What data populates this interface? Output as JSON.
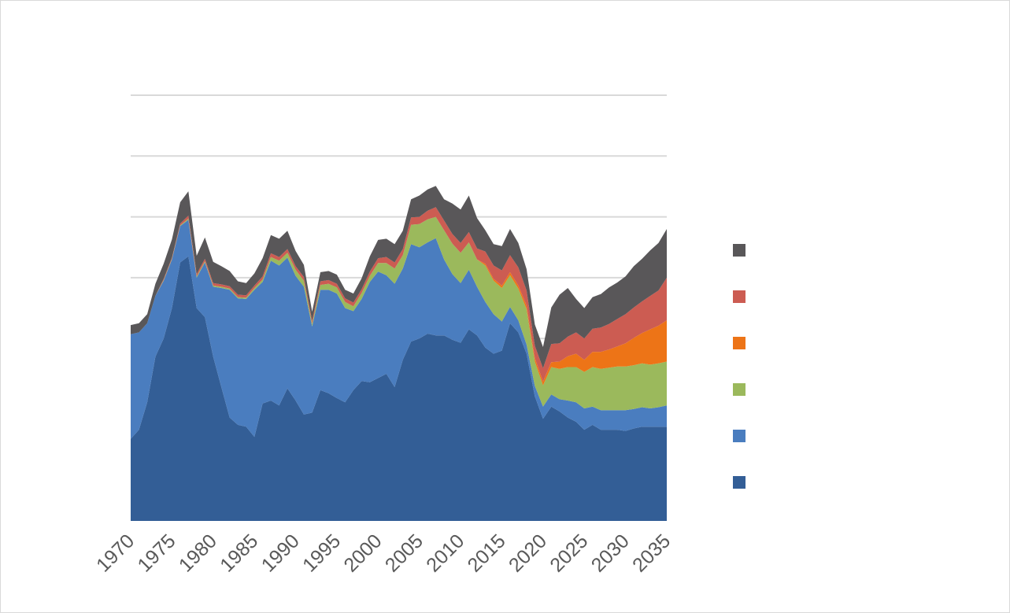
{
  "chart_data": {
    "type": "area",
    "stacked": true,
    "title": "",
    "xlabel": "",
    "ylabel": "",
    "x_ticks": [
      "1970",
      "1975",
      "1980",
      "1985",
      "1990",
      "1995",
      "2000",
      "2005",
      "2010",
      "2015",
      "2020",
      "2025",
      "2030",
      "2035"
    ],
    "x_range": [
      1970,
      2035
    ],
    "y_range": [
      0,
      7
    ],
    "y_gridlines": [
      1,
      2,
      3,
      4,
      5,
      6,
      7
    ],
    "y_tick_labels_visible": false,
    "grid": true,
    "legend_position": "right",
    "x": [
      1970,
      1971,
      1972,
      1973,
      1974,
      1975,
      1976,
      1977,
      1978,
      1979,
      1980,
      1981,
      1982,
      1983,
      1984,
      1985,
      1986,
      1987,
      1988,
      1989,
      1990,
      1991,
      1992,
      1993,
      1994,
      1995,
      1996,
      1997,
      1998,
      1999,
      2000,
      2001,
      2002,
      2003,
      2004,
      2005,
      2006,
      2007,
      2008,
      2009,
      2010,
      2011,
      2012,
      2013,
      2014,
      2015,
      2016,
      2017,
      2018,
      2019,
      2020,
      2021,
      2022,
      2023,
      2024,
      2025,
      2026,
      2027,
      2028,
      2029,
      2030,
      2031,
      2032,
      2033,
      2034,
      2035
    ],
    "series": [
      {
        "name": "",
        "color": "#335e96",
        "values": [
          1.35,
          1.5,
          1.95,
          2.7,
          3.0,
          3.5,
          4.25,
          4.35,
          3.5,
          3.35,
          2.7,
          2.2,
          1.7,
          1.58,
          1.55,
          1.38,
          1.93,
          1.98,
          1.9,
          2.18,
          1.98,
          1.75,
          1.78,
          2.15,
          2.1,
          2.02,
          1.95,
          2.15,
          2.3,
          2.28,
          2.35,
          2.42,
          2.2,
          2.65,
          2.95,
          3.0,
          3.08,
          3.05,
          3.05,
          2.98,
          2.93,
          3.15,
          3.05,
          2.85,
          2.75,
          2.8,
          3.25,
          3.1,
          2.75,
          2.05,
          1.68,
          1.88,
          1.8,
          1.7,
          1.63,
          1.5,
          1.58,
          1.5,
          1.5,
          1.5,
          1.48,
          1.52,
          1.55,
          1.55,
          1.55,
          1.55
        ]
      },
      {
        "name": "",
        "color": "#4a7dbf",
        "values": [
          1.72,
          1.6,
          1.3,
          1.0,
          0.95,
          0.8,
          0.6,
          0.6,
          0.5,
          0.9,
          1.15,
          1.63,
          2.1,
          2.08,
          2.1,
          2.42,
          2.0,
          2.3,
          2.3,
          2.15,
          2.05,
          2.1,
          1.42,
          1.65,
          1.7,
          1.72,
          1.55,
          1.3,
          1.35,
          1.65,
          1.75,
          1.62,
          1.7,
          1.5,
          1.6,
          1.5,
          1.5,
          1.6,
          1.25,
          1.08,
          0.98,
          0.98,
          0.8,
          0.75,
          0.65,
          0.48,
          0.27,
          0.2,
          0.15,
          0.17,
          0.2,
          0.2,
          0.2,
          0.28,
          0.32,
          0.35,
          0.3,
          0.32,
          0.32,
          0.32,
          0.34,
          0.32,
          0.32,
          0.3,
          0.32,
          0.35
        ]
      },
      {
        "name": "",
        "color": "#9bb95c",
        "values": [
          0.0,
          0.0,
          0.0,
          0.0,
          0.01,
          0.01,
          0.01,
          0.02,
          0.02,
          0.02,
          0.02,
          0.02,
          0.02,
          0.02,
          0.02,
          0.03,
          0.04,
          0.06,
          0.08,
          0.08,
          0.1,
          0.1,
          0.04,
          0.08,
          0.1,
          0.1,
          0.1,
          0.08,
          0.1,
          0.1,
          0.14,
          0.2,
          0.25,
          0.22,
          0.32,
          0.38,
          0.38,
          0.35,
          0.48,
          0.5,
          0.5,
          0.45,
          0.45,
          0.6,
          0.55,
          0.55,
          0.52,
          0.52,
          0.58,
          0.4,
          0.35,
          0.45,
          0.5,
          0.55,
          0.58,
          0.6,
          0.65,
          0.68,
          0.7,
          0.72,
          0.72,
          0.72,
          0.72,
          0.72,
          0.72,
          0.72
        ]
      },
      {
        "name": "",
        "color": "#ed7417",
        "values": [
          0.0,
          0.0,
          0.0,
          0.0,
          0.0,
          0.0,
          0.0,
          0.0,
          0.0,
          0.0,
          0.0,
          0.0,
          0.0,
          0.0,
          0.0,
          0.0,
          0.0,
          0.0,
          0.0,
          0.0,
          0.0,
          0.0,
          0.0,
          0.0,
          0.0,
          0.0,
          0.0,
          0.0,
          0.0,
          0.0,
          0.0,
          0.0,
          0.0,
          0.0,
          0.0,
          0.0,
          0.0,
          0.0,
          0.0,
          0.0,
          0.0,
          0.0,
          0.0,
          0.03,
          0.03,
          0.04,
          0.05,
          0.05,
          0.06,
          0.06,
          0.06,
          0.08,
          0.12,
          0.18,
          0.22,
          0.2,
          0.25,
          0.28,
          0.3,
          0.33,
          0.38,
          0.45,
          0.5,
          0.58,
          0.62,
          0.68
        ]
      },
      {
        "name": "",
        "color": "#cc5c52",
        "values": [
          0.0,
          0.0,
          0.0,
          0.0,
          0.02,
          0.02,
          0.03,
          0.05,
          0.04,
          0.04,
          0.04,
          0.04,
          0.04,
          0.04,
          0.04,
          0.04,
          0.05,
          0.06,
          0.06,
          0.06,
          0.06,
          0.06,
          0.05,
          0.06,
          0.06,
          0.06,
          0.06,
          0.06,
          0.06,
          0.07,
          0.08,
          0.1,
          0.1,
          0.1,
          0.12,
          0.12,
          0.14,
          0.16,
          0.16,
          0.16,
          0.16,
          0.17,
          0.18,
          0.2,
          0.22,
          0.25,
          0.28,
          0.3,
          0.25,
          0.2,
          0.22,
          0.3,
          0.3,
          0.32,
          0.35,
          0.35,
          0.38,
          0.4,
          0.42,
          0.45,
          0.48,
          0.5,
          0.52,
          0.55,
          0.58,
          0.7
        ]
      },
      {
        "name": "",
        "color": "#595759",
        "values": [
          0.15,
          0.15,
          0.15,
          0.2,
          0.25,
          0.3,
          0.35,
          0.4,
          0.3,
          0.35,
          0.35,
          0.3,
          0.25,
          0.22,
          0.2,
          0.2,
          0.3,
          0.3,
          0.3,
          0.3,
          0.25,
          0.2,
          0.15,
          0.15,
          0.15,
          0.15,
          0.14,
          0.15,
          0.18,
          0.25,
          0.3,
          0.3,
          0.3,
          0.3,
          0.3,
          0.35,
          0.35,
          0.35,
          0.35,
          0.5,
          0.55,
          0.6,
          0.5,
          0.35,
          0.35,
          0.4,
          0.43,
          0.4,
          0.35,
          0.35,
          0.35,
          0.6,
          0.8,
          0.8,
          0.55,
          0.5,
          0.52,
          0.55,
          0.6,
          0.6,
          0.62,
          0.68,
          0.7,
          0.75,
          0.78,
          0.8
        ]
      }
    ]
  }
}
